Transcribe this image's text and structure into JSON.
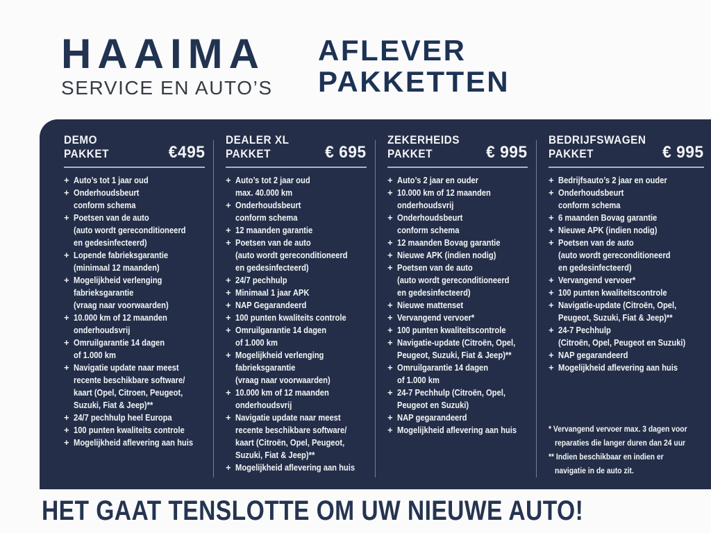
{
  "header": {
    "logo_title": "HAAIMA",
    "logo_subtitle": "SERVICE EN AUTO’S",
    "title_line1": "AFLEVER",
    "title_line2": "PAKKETTEN"
  },
  "icons": {
    "bullet": "+"
  },
  "colors": {
    "brand_navy": "#223351",
    "panel_background": "#242e48",
    "panel_text": "#f2f4f6",
    "subtitle_gray": "#363b44"
  },
  "packages": [
    {
      "name_line1": "DEMO",
      "name_line2": "PAKKET",
      "price": "€495",
      "items": [
        [
          "Auto’s tot 1 jaar oud"
        ],
        [
          "Onderhoudsbeurt",
          "conform schema"
        ],
        [
          "Poetsen van de auto",
          "(auto wordt gereconditioneerd",
          "en gedesinfecteerd)"
        ],
        [
          "Lopende fabrieksgarantie",
          "(minimaal 12 maanden)"
        ],
        [
          "Mogelijkheid verlenging",
          "fabrieksgarantie",
          "(vraag naar voorwaarden)"
        ],
        [
          "10.000 km of 12 maanden",
          "onderhoudsvrij"
        ],
        [
          "Omruilgarantie 14 dagen",
          "of 1.000 km"
        ],
        [
          "Navigatie update naar meest",
          "recente beschikbare software/",
          "kaart (Opel, Citroen, Peugeot,",
          "Suzuki, Fiat & Jeep)**"
        ],
        [
          "24/7 pechhulp heel Europa"
        ],
        [
          "100 punten kwaliteits controle"
        ],
        [
          "Mogelijkheid aflevering aan huis"
        ]
      ]
    },
    {
      "name_line1": "DEALER XL",
      "name_line2": "PAKKET",
      "price": "€ 695",
      "items": [
        [
          "Auto’s tot 2 jaar oud",
          "max. 40.000 km"
        ],
        [
          "Onderhoudsbeurt",
          "conform schema"
        ],
        [
          "12 maanden garantie"
        ],
        [
          "Poetsen van de auto",
          "(auto wordt gereconditioneerd",
          "en gedesinfecteerd)"
        ],
        [
          "24/7 pechhulp"
        ],
        [
          "Minimaal 1 jaar APK"
        ],
        [
          "NAP Gegarandeerd"
        ],
        [
          "100 punten kwaliteits controle"
        ],
        [
          "Omruilgarantie 14 dagen",
          "of 1.000 km"
        ],
        [
          "Mogelijkheid verlenging",
          "fabrieksgarantie",
          "(vraag naar voorwaarden)"
        ],
        [
          "10.000 km of 12 maanden",
          "onderhoudsvrij"
        ],
        [
          "Navigatie update naar meest",
          "recente beschikbare software/",
          "kaart (Citroën, Opel, Peugeot,",
          "Suzuki, Fiat & Jeep)**"
        ],
        [
          "Mogelijkheid aflevering aan huis"
        ]
      ]
    },
    {
      "name_line1": "ZEKERHEIDS",
      "name_line2": "PAKKET",
      "price": "€ 995",
      "items": [
        [
          "Auto’s 2 jaar en ouder"
        ],
        [
          "10.000 km of 12 maanden",
          "onderhoudsvrij"
        ],
        [
          "Onderhoudsbeurt",
          "conform schema"
        ],
        [
          "12 maanden Bovag garantie"
        ],
        [
          "Nieuwe APK (indien nodig)"
        ],
        [
          "Poetsen van de auto",
          "(auto wordt gereconditioneerd",
          "en gedesinfecteerd)"
        ],
        [
          "Nieuwe mattenset"
        ],
        [
          "Vervangend vervoer*"
        ],
        [
          "100 punten kwaliteitscontrole"
        ],
        [
          "Navigatie-update (Citroën, Opel,",
          "Peugeot, Suzuki, Fiat & Jeep)**"
        ],
        [
          "Omruilgarantie 14 dagen",
          "of 1.000 km"
        ],
        [
          "24-7 Pechhulp (Citroën, Opel,",
          "Peugeot en Suzuki)"
        ],
        [
          "NAP gegarandeerd"
        ],
        [
          "Mogelijkheid aflevering aan huis"
        ]
      ]
    },
    {
      "name_line1": "BEDRIJFSWAGEN",
      "name_line2": "PAKKET",
      "price": "€ 995",
      "items": [
        [
          "Bedrijfsauto’s 2 jaar en ouder"
        ],
        [
          "Onderhoudsbeurt",
          "conform schema"
        ],
        [
          "6 maanden Bovag garantie"
        ],
        [
          "Nieuwe APK (indien nodig)"
        ],
        [
          "Poetsen van de auto",
          "(auto wordt gereconditioneerd",
          "en gedesinfecteerd)"
        ],
        [
          "Vervangend vervoer*"
        ],
        [
          "100 punten kwaliteitscontrole"
        ],
        [
          "Navigatie-update (Citroën, Opel,",
          "Peugeot, Suzuki, Fiat & Jeep)**"
        ],
        [
          "24-7 Pechhulp",
          "(Citroën, Opel, Peugeot en Suzuki)"
        ],
        [
          "NAP gegarandeerd"
        ],
        [
          "Mogelijkheid aflevering aan huis"
        ]
      ]
    }
  ],
  "footnotes": [
    [
      "* Vervangend vervoer max. 3 dagen voor",
      "reparaties die langer duren dan 24 uur"
    ],
    [
      "** Indien beschikbaar en indien er",
      "navigatie in de auto zit."
    ]
  ],
  "tagline": "HET GAAT TENSLOTTE OM UW NIEUWE AUTO!"
}
